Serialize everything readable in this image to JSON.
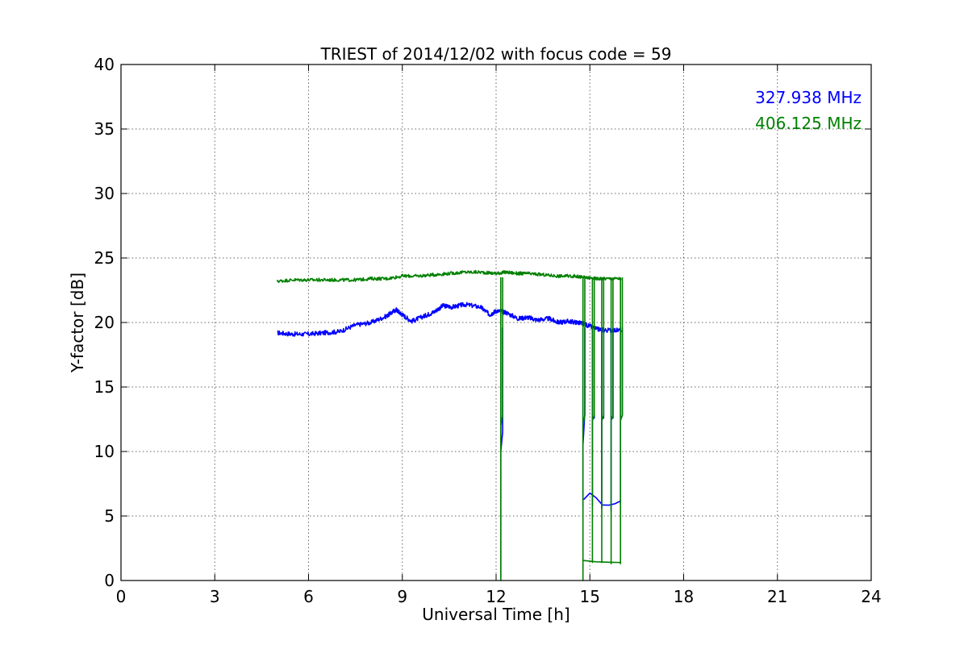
{
  "chart_data": {
    "type": "line",
    "title": "TRIEST of 2014/12/02 with focus code = 59",
    "xlabel": "Universal Time [h]",
    "ylabel": "Y-factor [dB]",
    "xlim": [
      0,
      24
    ],
    "ylim": [
      0,
      40
    ],
    "xticks": [
      0,
      3,
      6,
      9,
      12,
      15,
      18,
      21,
      24
    ],
    "yticks": [
      0,
      5,
      10,
      15,
      20,
      25,
      30,
      35,
      40
    ],
    "grid": true,
    "legend_position": "top-right",
    "series": [
      {
        "name": "327.938 MHz",
        "color": "#0000ff",
        "points": [
          [
            5.0,
            19.2
          ],
          [
            5.5,
            19.1
          ],
          [
            6.0,
            19.1
          ],
          [
            6.5,
            19.2
          ],
          [
            7.0,
            19.3
          ],
          [
            7.5,
            19.8
          ],
          [
            8.0,
            20.0
          ],
          [
            8.5,
            20.5
          ],
          [
            8.8,
            21.0
          ],
          [
            9.0,
            20.6
          ],
          [
            9.3,
            20.1
          ],
          [
            9.7,
            20.5
          ],
          [
            10.0,
            20.8
          ],
          [
            10.3,
            21.3
          ],
          [
            10.6,
            21.2
          ],
          [
            11.0,
            21.4
          ],
          [
            11.5,
            21.2
          ],
          [
            11.8,
            20.6
          ],
          [
            12.0,
            20.9
          ],
          [
            12.3,
            20.8
          ],
          [
            12.7,
            20.3
          ],
          [
            13.0,
            20.4
          ],
          [
            13.3,
            20.2
          ],
          [
            13.7,
            20.3
          ],
          [
            14.0,
            20.0
          ],
          [
            14.3,
            20.1
          ],
          [
            14.6,
            20.0
          ],
          [
            14.8,
            19.9
          ],
          [
            15.2,
            19.5
          ],
          [
            15.5,
            19.4
          ],
          [
            16.0,
            19.4
          ]
        ],
        "dips": [
          {
            "x": 12.15,
            "low": 0.2,
            "mid": [
              10.0,
              11.5
            ]
          },
          {
            "x": 14.78,
            "low": 5.8,
            "mid": [
              10.5,
              13.0
            ]
          },
          {
            "x": 15.08,
            "low": 5.8,
            "mid": [
              12.5,
              12.6
            ]
          },
          {
            "x": 15.38,
            "low": 5.6,
            "mid": [
              12.5,
              12.6
            ]
          },
          {
            "x": 15.68,
            "low": 5.4,
            "mid": [
              12.5,
              12.6
            ]
          },
          {
            "x": 15.98,
            "low": 5.9,
            "mid": [
              12.5,
              12.8
            ]
          }
        ]
      },
      {
        "name": "406.125 MHz",
        "color": "#008000",
        "points": [
          [
            5.0,
            23.2
          ],
          [
            5.5,
            23.3
          ],
          [
            6.0,
            23.3
          ],
          [
            6.5,
            23.3
          ],
          [
            7.0,
            23.3
          ],
          [
            7.5,
            23.3
          ],
          [
            8.0,
            23.4
          ],
          [
            8.5,
            23.4
          ],
          [
            9.0,
            23.6
          ],
          [
            9.5,
            23.6
          ],
          [
            10.0,
            23.7
          ],
          [
            10.5,
            23.8
          ],
          [
            11.0,
            23.9
          ],
          [
            11.5,
            23.9
          ],
          [
            12.0,
            23.8
          ],
          [
            12.3,
            23.9
          ],
          [
            12.7,
            23.8
          ],
          [
            13.0,
            23.8
          ],
          [
            13.5,
            23.7
          ],
          [
            14.0,
            23.6
          ],
          [
            14.5,
            23.6
          ],
          [
            14.8,
            23.5
          ],
          [
            15.2,
            23.4
          ],
          [
            15.5,
            23.4
          ],
          [
            16.0,
            23.4
          ]
        ],
        "dips": [
          {
            "x": 12.15,
            "low": 0.0,
            "mid": [
              12.0,
              12.8
            ]
          },
          {
            "x": 14.78,
            "low": 0.0,
            "mid": [
              12.0,
              12.8
            ]
          },
          {
            "x": 15.08,
            "low": 1.4,
            "mid": [
              12.4,
              12.8
            ]
          },
          {
            "x": 15.38,
            "low": 1.4,
            "mid": [
              12.4,
              12.8
            ]
          },
          {
            "x": 15.68,
            "low": 1.3,
            "mid": [
              12.4,
              12.8
            ]
          },
          {
            "x": 15.98,
            "low": 1.3,
            "mid": [
              12.4,
              12.8
            ]
          }
        ]
      }
    ]
  }
}
